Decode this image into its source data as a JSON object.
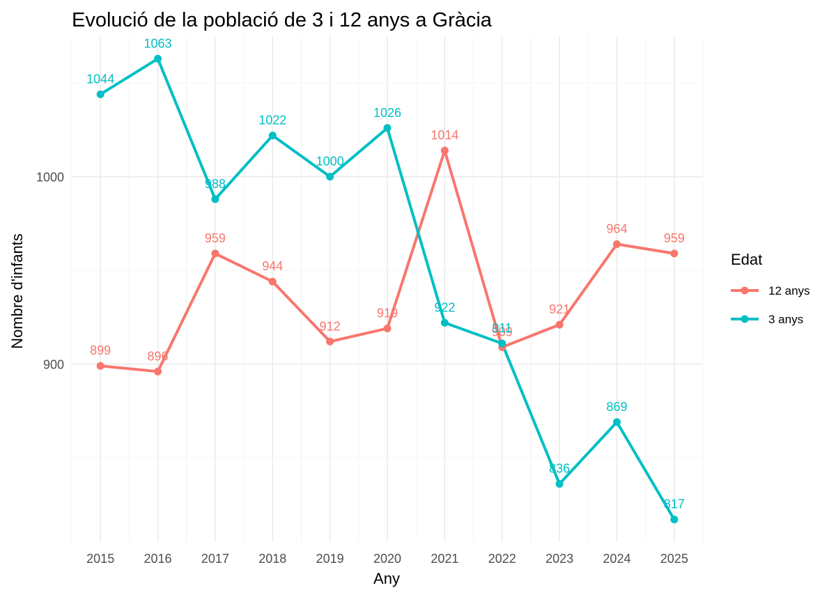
{
  "chart_data": {
    "type": "line",
    "title": "Evolució de la població de 3 i 12 anys a Gràcia",
    "xlabel": "Any",
    "ylabel": "Nombre d'infants",
    "x": [
      2015,
      2016,
      2017,
      2018,
      2019,
      2020,
      2021,
      2022,
      2023,
      2024,
      2025
    ],
    "y_ticks": [
      900,
      1000
    ],
    "xlim": [
      2014.5,
      2025.5
    ],
    "ylim": [
      805,
      1075
    ],
    "grid": true,
    "legend": {
      "title": "Edat",
      "position": "right"
    },
    "series": [
      {
        "name": "12 anys",
        "color": "#F8766D",
        "values": [
          899,
          896,
          959,
          944,
          912,
          919,
          1014,
          909,
          921,
          964,
          959
        ]
      },
      {
        "name": "3 anys",
        "color": "#00BFC4",
        "values": [
          1044,
          1063,
          988,
          1022,
          1000,
          1026,
          922,
          911,
          836,
          869,
          817
        ]
      }
    ]
  }
}
